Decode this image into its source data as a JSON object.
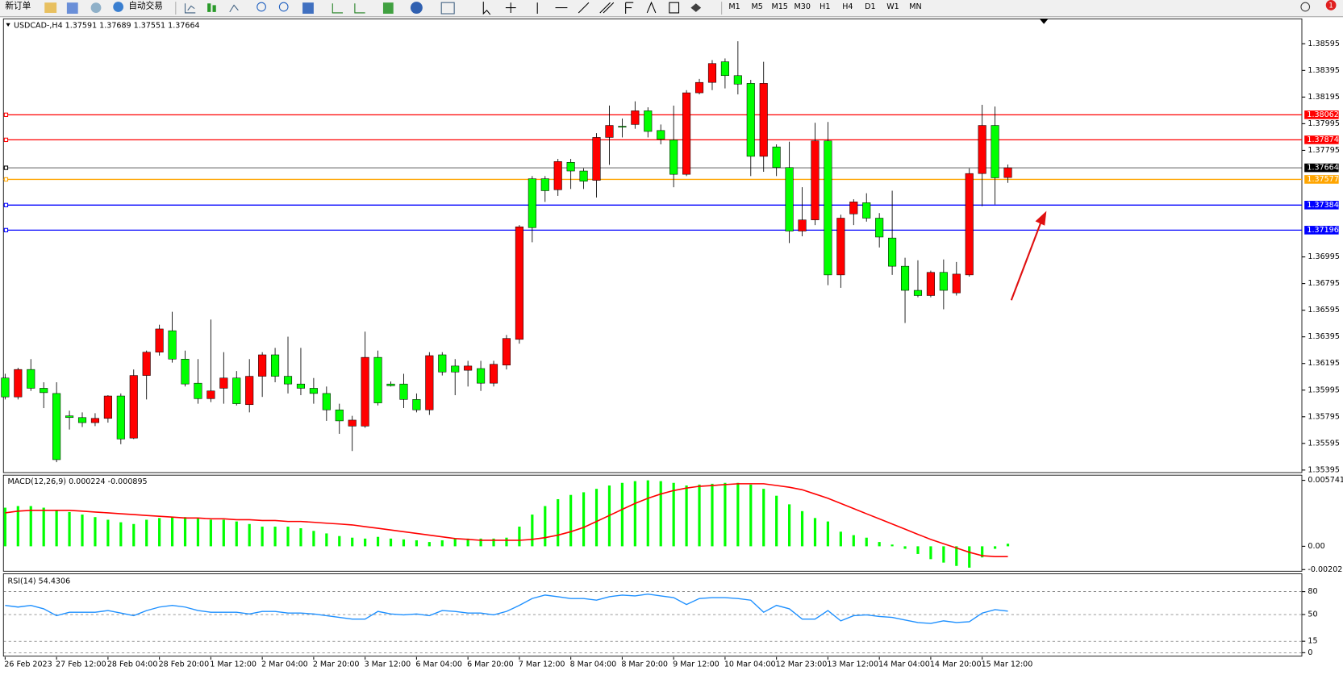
{
  "toolbar": {
    "buttons": [
      "新订单",
      "自动交易"
    ],
    "timeframes": [
      "M1",
      "M5",
      "M15",
      "M30",
      "H1",
      "H4",
      "D1",
      "W1",
      "MN"
    ],
    "badge": "1"
  },
  "chart_data": [
    {
      "type": "candlestick",
      "title": "USDCAD-,H4 1.37591 1.37689 1.37551 1.37664",
      "categories": [
        "26 Feb 2023",
        null,
        null,
        null,
        "27 Feb 12:00",
        null,
        null,
        null,
        "28 Feb 04:00",
        null,
        null,
        null,
        "28 Feb 20:00",
        null,
        null,
        null,
        "1 Mar 12:00",
        null,
        null,
        null,
        "2 Mar 04:00",
        null,
        null,
        null,
        "2 Mar 20:00",
        null,
        null,
        null,
        "3 Mar 12:00",
        null,
        null,
        null,
        "6 Mar 04:00",
        null,
        null,
        null,
        "6 Mar 20:00",
        null,
        null,
        null,
        "7 Mar 12:00",
        null,
        null,
        null,
        "8 Mar 04:00",
        null,
        null,
        null,
        "8 Mar 20:00",
        null,
        null,
        null,
        "9 Mar 12:00",
        null,
        null,
        null,
        "10 Mar 04:00",
        null,
        null,
        null,
        "12 Mar 23:00",
        null,
        null,
        null,
        "13 Mar 12:00",
        null,
        null,
        null,
        "14 Mar 04:00",
        null,
        null,
        null,
        "14 Mar 20:00",
        null,
        null,
        null,
        "15 Mar 12:00",
        null,
        null
      ],
      "open": [
        1.36086,
        1.35944,
        1.3615,
        1.36009,
        1.3597,
        1.35802,
        1.35789,
        1.35751,
        1.35783,
        1.35951,
        1.35635,
        1.36105,
        1.3628,
        1.36441,
        1.36228,
        1.36047,
        1.35931,
        1.36009,
        1.36086,
        1.35886,
        1.36099,
        1.3626,
        1.36099,
        1.36041,
        1.36009,
        1.3597,
        1.35847,
        1.35725,
        1.35725,
        1.36241,
        1.36041,
        1.36041,
        1.35925,
        1.35847,
        1.3626,
        1.36176,
        1.36144,
        1.36157,
        1.36047,
        1.36183,
        1.36376,
        1.37582,
        1.37582,
        1.37499,
        1.37705,
        1.3764,
        1.3757,
        1.37892,
        1.37976,
        1.37989,
        1.38092,
        1.37944,
        1.37873,
        1.37615,
        1.38227,
        1.38305,
        1.3846,
        1.38356,
        1.38298,
        1.3775,
        1.37821,
        1.37666,
        1.37189,
        1.37273,
        1.37866,
        1.3686,
        1.37318,
        1.37402,
        1.37286,
        1.37137,
        1.36925,
        1.36744,
        1.36705,
        1.36879,
        1.36725,
        1.3686,
        1.37621,
        1.37982,
        1.37591
      ],
      "high": [
        1.36118,
        1.36163,
        1.36228,
        1.36054,
        1.36054,
        1.35841,
        1.35828,
        1.35822,
        1.35957,
        1.3597,
        1.3615,
        1.36292,
        1.36486,
        1.36583,
        1.36292,
        1.36228,
        1.36525,
        1.3628,
        1.36138,
        1.36228,
        1.3628,
        1.36312,
        1.36396,
        1.36312,
        1.36086,
        1.36022,
        1.35893,
        1.35802,
        1.36434,
        1.36292,
        1.3606,
        1.36118,
        1.3597,
        1.3628,
        1.3628,
        1.36228,
        1.36215,
        1.36215,
        1.36215,
        1.36409,
        1.37234,
        1.37602,
        1.37602,
        1.37731,
        1.37731,
        1.3766,
        1.37924,
        1.38131,
        1.38034,
        1.38163,
        1.38118,
        1.37989,
        1.38131,
        1.38247,
        1.38331,
        1.38473,
        1.38485,
        1.38614,
        1.38324,
        1.3846,
        1.3784,
        1.3786,
        1.37518,
        1.38002,
        1.38008,
        1.37312,
        1.37428,
        1.37473,
        1.37324,
        1.37492,
        1.36989,
        1.3697,
        1.36892,
        1.36976,
        1.36957,
        1.3766,
        1.38137,
        1.38124,
        1.37689
      ],
      "low": [
        1.35925,
        1.35925,
        1.35989,
        1.3586,
        1.35454,
        1.35699,
        1.35718,
        1.35725,
        1.35751,
        1.35589,
        1.35628,
        1.35925,
        1.36254,
        1.36202,
        1.36022,
        1.35893,
        1.35905,
        1.35893,
        1.3588,
        1.35828,
        1.35944,
        1.36054,
        1.3597,
        1.35957,
        1.35893,
        1.35764,
        1.35667,
        1.35538,
        1.35712,
        1.3588,
        1.36022,
        1.3586,
        1.35828,
        1.35809,
        1.36105,
        1.35957,
        1.36022,
        1.35989,
        1.36022,
        1.3615,
        1.36344,
        1.37105,
        1.37408,
        1.37453,
        1.37505,
        1.37505,
        1.37441,
        1.37686,
        1.37892,
        1.37957,
        1.37892,
        1.3784,
        1.37518,
        1.37602,
        1.38215,
        1.38247,
        1.3826,
        1.38215,
        1.37602,
        1.37634,
        1.37602,
        1.37099,
        1.3715,
        1.37234,
        1.36783,
        1.36763,
        1.37234,
        1.3726,
        1.37066,
        1.3686,
        1.36499,
        1.36692,
        1.36692,
        1.36602,
        1.36705,
        1.36847,
        1.37376,
        1.37389,
        1.37551
      ],
      "close": [
        1.35944,
        1.3615,
        1.36009,
        1.35976,
        1.35473,
        1.35789,
        1.35751,
        1.35783,
        1.35951,
        1.35628,
        1.36105,
        1.3628,
        1.36454,
        1.36228,
        1.36041,
        1.35931,
        1.35989,
        1.36086,
        1.35893,
        1.36099,
        1.3626,
        1.36099,
        1.36041,
        1.36009,
        1.3597,
        1.35847,
        1.35764,
        1.3577,
        1.36241,
        1.35899,
        1.36028,
        1.35925,
        1.35847,
        1.36254,
        1.36131,
        1.36131,
        1.36176,
        1.36047,
        1.36189,
        1.36383,
        1.37221,
        1.37215,
        1.37492,
        1.37711,
        1.3764,
        1.37563,
        1.37892,
        1.37982,
        1.37969,
        1.38092,
        1.37937,
        1.37879,
        1.37615,
        1.38227,
        1.38305,
        1.38447,
        1.38356,
        1.38292,
        1.3775,
        1.38298,
        1.37666,
        1.37189,
        1.37273,
        1.37866,
        1.3686,
        1.37286,
        1.37408,
        1.37286,
        1.37144,
        1.36925,
        1.36744,
        1.36705,
        1.36879,
        1.36744,
        1.36866,
        1.37621,
        1.37982,
        1.37589,
        1.37664
      ],
      "up_color": "#ff0000",
      "down_color": "#00ff00",
      "ylim": [
        1.35376,
        1.38782
      ],
      "yticks": [
        1.38595,
        1.38395,
        1.38195,
        1.37995,
        1.37795,
        1.36995,
        1.36795,
        1.36595,
        1.36395,
        1.36195,
        1.35995,
        1.35795,
        1.35595,
        1.35395
      ],
      "levels": [
        {
          "value": 1.38062,
          "color": "#ff0000"
        },
        {
          "value": 1.37874,
          "color": "#ff0000"
        },
        {
          "value": 1.37664,
          "color": "#000000"
        },
        {
          "value": 1.37577,
          "color": "#ffa500"
        },
        {
          "value": 1.37384,
          "color": "#0000ff"
        },
        {
          "value": 1.37196,
          "color": "#0000ff"
        }
      ]
    },
    {
      "type": "macd",
      "title": "MACD(12,26,9) 0.000224 -0.000895",
      "histogram": {
        "color": "#00ff00",
        "values": [
          0.00336,
          0.0035,
          0.0035,
          0.00336,
          0.00313,
          0.00298,
          0.00276,
          0.00254,
          0.00231,
          0.00209,
          0.00194,
          0.00231,
          0.00246,
          0.00254,
          0.00254,
          0.00246,
          0.00231,
          0.00231,
          0.00216,
          0.00194,
          0.00171,
          0.00171,
          0.00171,
          0.00157,
          0.00134,
          0.00112,
          0.00089,
          0.00075,
          0.00067,
          0.00082,
          0.00067,
          0.0006,
          0.00052,
          0.00037,
          0.00052,
          0.00067,
          0.00067,
          0.00067,
          0.00067,
          0.00075,
          0.00171,
          0.00276,
          0.0035,
          0.0041,
          0.00447,
          0.0047,
          0.005,
          0.00529,
          0.00552,
          0.00567,
          0.00574,
          0.00567,
          0.00552,
          0.00529,
          0.00537,
          0.00544,
          0.00552,
          0.00552,
          0.00537,
          0.005,
          0.0044,
          0.00365,
          0.00306,
          0.00246,
          0.00216,
          0.00127,
          0.00097,
          0.00075,
          0.00037,
          0.00015,
          -0.00022,
          -0.00067,
          -0.00112,
          -0.00142,
          -0.00171,
          -0.00186,
          -0.00097,
          -0.00022,
          0.000224
        ]
      },
      "signal": {
        "color": "#ff0000",
        "values": [
          0.00291,
          0.00306,
          0.00313,
          0.00313,
          0.00313,
          0.00313,
          0.00306,
          0.00298,
          0.00291,
          0.00283,
          0.00276,
          0.00268,
          0.00261,
          0.00254,
          0.00246,
          0.00246,
          0.00239,
          0.00239,
          0.00231,
          0.00231,
          0.00224,
          0.00224,
          0.00216,
          0.00216,
          0.00209,
          0.00201,
          0.00194,
          0.00186,
          0.00171,
          0.00157,
          0.00142,
          0.00127,
          0.00112,
          0.00097,
          0.00082,
          0.00067,
          0.0006,
          0.00052,
          0.00052,
          0.00052,
          0.00052,
          0.0006,
          0.00075,
          0.00097,
          0.00127,
          0.00164,
          0.00216,
          0.00268,
          0.00321,
          0.00373,
          0.00418,
          0.00455,
          0.00485,
          0.00507,
          0.00522,
          0.00529,
          0.00537,
          0.00544,
          0.00544,
          0.00544,
          0.00529,
          0.00514,
          0.00492,
          0.00455,
          0.00418,
          0.00373,
          0.00328,
          0.00283,
          0.00239,
          0.00194,
          0.00149,
          0.00104,
          0.0006,
          0.00022,
          -0.00015,
          -0.00052,
          -0.00082,
          -0.000895,
          -0.000895
        ]
      },
      "ylim": [
        -0.00217,
        0.00619
      ],
      "yticks": [
        0.005741,
        {
          "value": 0,
          "label": "0.00"
        },
        -0.002027
      ]
    },
    {
      "type": "rsi",
      "title": "RSI(14) 54.4306",
      "color": "#1e90ff",
      "values": [
        62.0,
        59.8,
        62.0,
        57.5,
        48.5,
        53.0,
        53.0,
        53.0,
        55.2,
        51.9,
        48.5,
        55.2,
        59.8,
        62.0,
        59.8,
        55.2,
        53.0,
        53.0,
        53.0,
        50.7,
        54.1,
        54.1,
        51.9,
        51.9,
        50.7,
        48.5,
        46.2,
        44.0,
        44.0,
        54.1,
        50.7,
        49.6,
        50.7,
        48.5,
        55.2,
        54.1,
        51.9,
        51.9,
        49.6,
        54.1,
        62.0,
        71.0,
        75.5,
        73.3,
        71.0,
        71.0,
        68.8,
        73.3,
        75.5,
        74.4,
        76.7,
        74.4,
        72.2,
        63.1,
        71.0,
        72.2,
        72.2,
        71.0,
        68.8,
        53.0,
        62.0,
        57.5,
        44.0,
        44.0,
        55.2,
        41.7,
        48.5,
        49.6,
        47.4,
        46.2,
        42.8,
        39.5,
        38.3,
        41.7,
        39.5,
        40.6,
        51.9,
        56.4,
        54.43
      ],
      "ylim": [
        0,
        100
      ],
      "yticks": [
        80,
        50,
        15,
        0
      ]
    }
  ]
}
